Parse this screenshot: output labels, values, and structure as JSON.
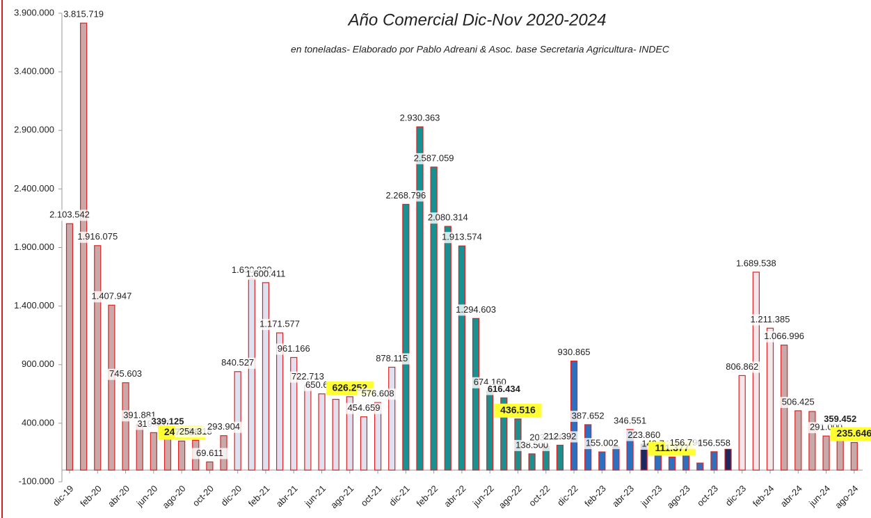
{
  "chart_data": {
    "type": "bar",
    "subtitle": "Año Comercial Dic-Nov  2020-2024",
    "note": "en toneladas- Elaborado por Pablo Adreani & Asoc. base Secretaria  Agricultura- INDEC",
    "categories": [
      "dic-19",
      null,
      "feb-20",
      null,
      "abr-20",
      null,
      "jun-20",
      null,
      "ago-20",
      null,
      "oct-20",
      null,
      "dic-20",
      null,
      "feb-21",
      null,
      "abr-21",
      null,
      "jun-21",
      null,
      "ago-21",
      null,
      "oct-21",
      null,
      "dic-21",
      null,
      "feb-22",
      null,
      "abr-22",
      null,
      "jun-22",
      null,
      "ago-22",
      null,
      "oct-22",
      null,
      "dic-22",
      null,
      "feb-23",
      null,
      "abr-23",
      null,
      "jun-23",
      null,
      "ago-23",
      null,
      "oct-23",
      null,
      "dic-23",
      null,
      "feb-24",
      null,
      "abr-24",
      null,
      "jun-24",
      null,
      "ago-24"
    ],
    "values": [
      2103542,
      3815719,
      1916075,
      1407947,
      745603,
      391881,
      319487,
      339125,
      247788,
      254318,
      69611,
      293904,
      840527,
      1630830,
      1600411,
      1171577,
      961166,
      722713,
      650624,
      604000,
      626252,
      454659,
      576608,
      878115,
      2268796,
      2930363,
      2587059,
      2080314,
      1913574,
      1294603,
      674160,
      616434,
      436516,
      138500,
      203084,
      212392,
      930865,
      387652,
      155002,
      200000,
      346551,
      223860,
      149744,
      111377,
      156790,
      60000,
      156558,
      180000,
      806862,
      1689538,
      1211385,
      1066996,
      506425,
      500000,
      291000,
      359452,
      235646
    ],
    "value_labels": [
      "2.103.542",
      "3.815.719",
      "1.916.075",
      "1.407.947",
      "745.603",
      "391.881",
      "319.487",
      "339.125",
      "247.788",
      "254.318",
      "69.611",
      "293.904",
      "840.527",
      "1.630.830",
      "1.600.411",
      "1.171.577",
      "961.166",
      "722.713",
      "650.624",
      null,
      "626.252",
      "454.659",
      "576.608",
      "878.115",
      "2.268.796",
      "2.930.363",
      "2.587.059",
      "2.080.314",
      "1.913.574",
      "1.294.603",
      "674.160",
      "616.434",
      "436.516",
      "138.500",
      "203.084",
      "212.392",
      "930.865",
      "387.652",
      "155.002",
      null,
      "346.551",
      "223.860",
      "149.744",
      "111.377",
      "156.790",
      null,
      "156.558",
      null,
      "806.862",
      "1.689.538",
      "1.211.385",
      "1.066.996",
      "506.425",
      null,
      "291.000",
      "359.452",
      "235.646"
    ],
    "colors": [
      "#c8a8a8",
      "#c8a8a8",
      "#c8a8a8",
      "#c8a8a8",
      "#c8a8a8",
      "#c8a8a8",
      "#c8a8a8",
      "#c8a8a8",
      "#c8a8a8",
      "#c8a8a8",
      "#c8a8a8",
      "#c8a8a8",
      "#dfe0f0",
      "#dfe0f0",
      "#dfe0f0",
      "#dfe0f0",
      "#dfe0f0",
      "#dfe0f0",
      "#dfe0f0",
      "#dfe0f0",
      "#dfe0f0",
      "#dfe0f0",
      "#dfe0f0",
      "#dfe0f0",
      "#1a9090",
      "#1a9090",
      "#1a9090",
      "#1a9090",
      "#1a9090",
      "#1a9090",
      "#1a9090",
      "#1a9090",
      "#1a9090",
      "#1a9090",
      "#1a9090",
      "#1a9090",
      "#2e6fc0",
      "#2e6fc0",
      "#2e6fc0",
      "#2e6fc0",
      "#2e6fc0",
      "#1a2a60",
      "#2e6fc0",
      "#2e6fc0",
      "#2e6fc0",
      "#2e6fc0",
      "#2e6fc0",
      "#1a2a60",
      "#f4e8ec",
      "#f4e8ec",
      "#f4e8ec",
      "#c8a8a8",
      "#c8a8a8",
      "#c8a8a8",
      "#c8a8a8",
      "#c8a8a8",
      "#c8a8a8"
    ],
    "outline": "#e02020",
    "highlight_color": "#ffff33",
    "highlight": [
      8,
      20,
      32,
      43,
      56
    ],
    "bold": [
      7,
      31,
      55
    ],
    "ylim": [
      -100000,
      3900000
    ],
    "yticks": [
      {
        "value": -100000,
        "label": "-100.000"
      },
      {
        "value": 400000,
        "label": "400.000"
      },
      {
        "value": 900000,
        "label": "900.000"
      },
      {
        "value": 1400000,
        "label": "1.400.000"
      },
      {
        "value": 1900000,
        "label": "1.900.000"
      },
      {
        "value": 2400000,
        "label": "2.400.000"
      },
      {
        "value": 2900000,
        "label": "2.900.000"
      },
      {
        "value": 3400000,
        "label": "3.400.000"
      },
      {
        "value": 3900000,
        "label": "3.900.000"
      }
    ],
    "grid": false
  }
}
